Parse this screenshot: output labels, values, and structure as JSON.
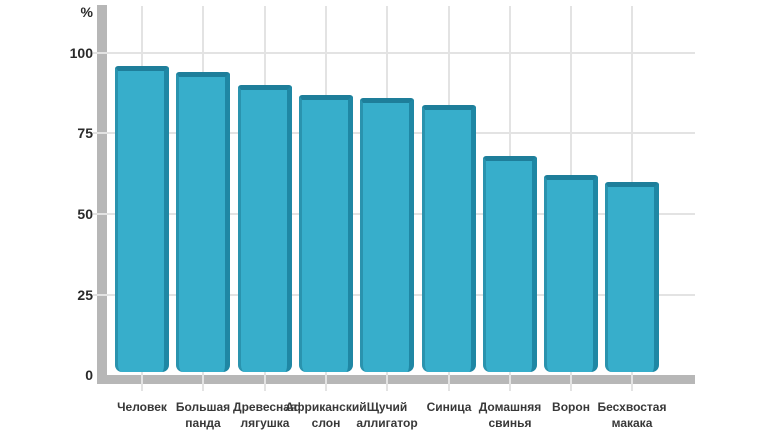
{
  "chart_data": {
    "type": "bar",
    "title": "",
    "xlabel": "",
    "ylabel": "%",
    "categories": [
      "Человек",
      "Большая панда",
      "Древесная лягушка",
      "Африканский слон",
      "Щучий аллигатор",
      "Синица",
      "Домашняя свинья",
      "Ворон",
      "Бесхвостая макака"
    ],
    "category_lines": [
      [
        "Человек"
      ],
      [
        "Большая",
        "панда"
      ],
      [
        "Древесная",
        "лягушка"
      ],
      [
        "Африканский",
        "слон"
      ],
      [
        "Щучий",
        "аллигатор"
      ],
      [
        "Синица"
      ],
      [
        "Домашняя",
        "свинья"
      ],
      [
        "Ворон"
      ],
      [
        "Бесхвостая",
        "макака"
      ]
    ],
    "values": [
      96,
      94,
      90,
      87,
      86,
      84,
      68,
      62,
      60
    ],
    "yticks": [
      100,
      75,
      50,
      25,
      0
    ],
    "ylim": [
      0,
      105
    ],
    "grid": true,
    "legend": false,
    "colors": {
      "bar_fill": "#37aecb",
      "bar_bevel_dark": "#1e7e9a",
      "bar_bevel_side": "#1f87a4",
      "axis": "#b7b7b7",
      "gridline": "#e3e3e3",
      "text": "#2a2a2a"
    }
  }
}
